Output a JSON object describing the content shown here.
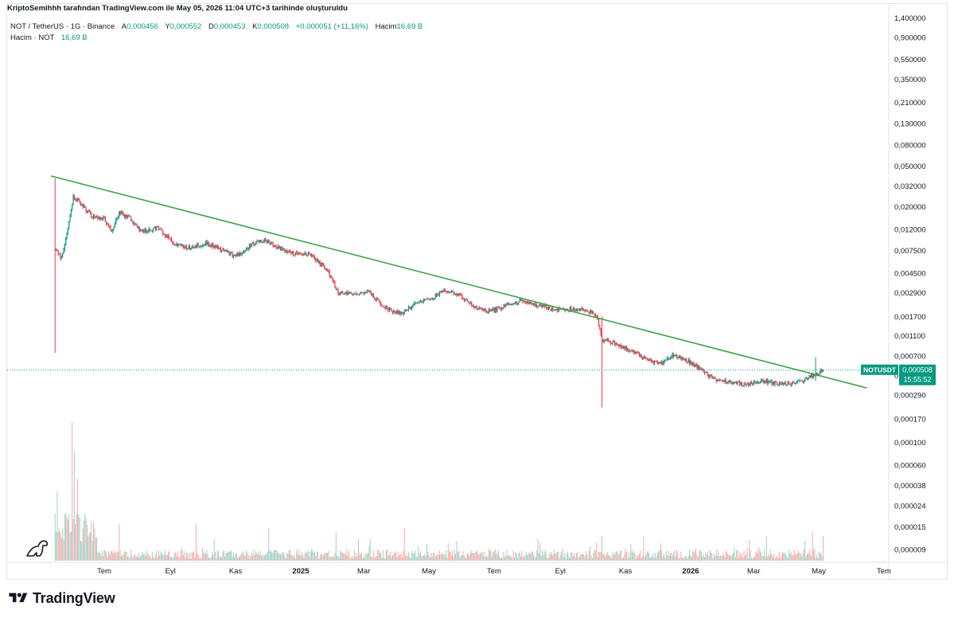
{
  "header": {
    "title": "KriptoSemihhh tarafından TradingView.com ile May 05, 2026 11:04 UTC+3 tarihinde oluşturuldu"
  },
  "legend": {
    "symbol": "NOT / TetherUS · 1G · Binance",
    "open_label": "A",
    "open": "0,000456",
    "high_label": "Y",
    "high": "0,000552",
    "low_label": "D",
    "low": "0,000453",
    "close_label": "K",
    "close": "0,000508",
    "change": "+0,000051 (+11,16%)",
    "volume_label": "Hacim",
    "volume": "16,69 B",
    "volume_series": "Hacim · NOT",
    "volume_series_value": "16,69 B"
  },
  "price_tag": {
    "symbol": "NOTUSDT",
    "price": "0,000508",
    "countdown": "15:55:52"
  },
  "colors": {
    "up": "#089981",
    "down": "#f23645",
    "trendline": "#43a047",
    "up_volume": "#9bd3c9",
    "down_volume": "#f7a9a7",
    "grid_text": "#131722"
  },
  "brand": {
    "name": "TradingView",
    "icon": "tradingview-logo-icon",
    "watermark_icon": "dino-icon"
  },
  "chart_data": {
    "type": "candlestick",
    "symbol": "NOTUSDT",
    "interval": "1D",
    "y_scale": "log",
    "y_ticks": [
      "1,400000",
      "0,900000",
      "0,550000",
      "0,350000",
      "0,210000",
      "0,130000",
      "0,080000",
      "0,050000",
      "0,032000",
      "0,020000",
      "0,012000",
      "0,007500",
      "0,004500",
      "0,002900",
      "0,001700",
      "0,001100",
      "0,000700",
      "0,000450",
      "0,000290",
      "0,000170",
      "0,000100",
      "0,000060",
      "0,000038",
      "0,000024",
      "0,000015",
      "0,000009"
    ],
    "y_tick_values": [
      1.4,
      0.9,
      0.55,
      0.35,
      0.21,
      0.13,
      0.08,
      0.05,
      0.032,
      0.02,
      0.012,
      0.0075,
      0.0045,
      0.0029,
      0.0017,
      0.0011,
      0.0007,
      0.00045,
      0.00029,
      0.00017,
      0.0001,
      6e-05,
      3.8e-05,
      2.4e-05,
      1.5e-05,
      9e-06
    ],
    "x_ticks": [
      "Tem",
      "Eyl",
      "Kas",
      "2025",
      "Mar",
      "May",
      "Tem",
      "Eyl",
      "Kas",
      "2026",
      "Mar",
      "May",
      "Tem"
    ],
    "x_tick_bold": [
      false,
      false,
      false,
      true,
      false,
      false,
      false,
      false,
      false,
      true,
      false,
      false,
      false
    ],
    "x_tick_dates": [
      "2024-07-01",
      "2024-09-01",
      "2024-11-01",
      "2025-01-01",
      "2025-03-01",
      "2025-05-01",
      "2025-07-01",
      "2025-09-01",
      "2025-11-01",
      "2026-01-01",
      "2026-03-01",
      "2026-05-01",
      "2026-07-01"
    ],
    "last_price": 0.000508,
    "price_path": [
      [
        "2024-05-16",
        0.0078
      ],
      [
        "2024-05-22",
        0.0062
      ],
      [
        "2024-05-28",
        0.012
      ],
      [
        "2024-06-02",
        0.025
      ],
      [
        "2024-06-10",
        0.021
      ],
      [
        "2024-06-20",
        0.016
      ],
      [
        "2024-07-01",
        0.015
      ],
      [
        "2024-07-08",
        0.0115
      ],
      [
        "2024-07-15",
        0.0175
      ],
      [
        "2024-07-25",
        0.0155
      ],
      [
        "2024-08-05",
        0.0115
      ],
      [
        "2024-08-20",
        0.0125
      ],
      [
        "2024-09-05",
        0.0085
      ],
      [
        "2024-09-20",
        0.008
      ],
      [
        "2024-10-05",
        0.0088
      ],
      [
        "2024-10-20",
        0.0075
      ],
      [
        "2024-11-01",
        0.0065
      ],
      [
        "2024-11-15",
        0.0085
      ],
      [
        "2024-11-28",
        0.0095
      ],
      [
        "2024-12-10",
        0.008
      ],
      [
        "2024-12-25",
        0.007
      ],
      [
        "2025-01-10",
        0.0068
      ],
      [
        "2025-01-25",
        0.005
      ],
      [
        "2025-02-05",
        0.0029
      ],
      [
        "2025-02-20",
        0.0028
      ],
      [
        "2025-03-05",
        0.003
      ],
      [
        "2025-03-20",
        0.0021
      ],
      [
        "2025-04-05",
        0.0018
      ],
      [
        "2025-04-20",
        0.0023
      ],
      [
        "2025-05-05",
        0.0026
      ],
      [
        "2025-05-15",
        0.0031
      ],
      [
        "2025-05-28",
        0.0028
      ],
      [
        "2025-06-10",
        0.0022
      ],
      [
        "2025-06-25",
        0.0019
      ],
      [
        "2025-07-10",
        0.0021
      ],
      [
        "2025-07-25",
        0.0024
      ],
      [
        "2025-08-10",
        0.0022
      ],
      [
        "2025-08-25",
        0.002
      ],
      [
        "2025-09-10",
        0.002
      ],
      [
        "2025-09-25",
        0.002
      ],
      [
        "2025-10-05",
        0.0017
      ],
      [
        "2025-10-10",
        0.001
      ],
      [
        "2025-10-25",
        0.0009
      ],
      [
        "2025-11-10",
        0.00075
      ],
      [
        "2025-11-25",
        0.00062
      ],
      [
        "2025-12-05",
        0.0006
      ],
      [
        "2025-12-15",
        0.0007
      ],
      [
        "2025-12-30",
        0.00062
      ],
      [
        "2026-01-15",
        0.00048
      ],
      [
        "2026-01-25",
        0.0004
      ],
      [
        "2026-02-10",
        0.00038
      ],
      [
        "2026-02-25",
        0.00037
      ],
      [
        "2026-03-10",
        0.0004
      ],
      [
        "2026-03-25",
        0.00037
      ],
      [
        "2026-04-10",
        0.00038
      ],
      [
        "2026-04-20",
        0.00042
      ],
      [
        "2026-05-05",
        0.000508
      ]
    ],
    "notable_wicks": [
      {
        "date": "2024-05-16",
        "high": 0.038,
        "low": 0.00075
      },
      {
        "date": "2025-10-10",
        "high": 0.0017,
        "low": 0.00022
      },
      {
        "date": "2026-04-28",
        "high": 0.00068,
        "low": 0.0004
      }
    ],
    "trendline": {
      "start": {
        "date": "2024-05-12",
        "price": 0.04
      },
      "end": {
        "date": "2026-06-15",
        "price": 0.00034
      }
    },
    "volume": {
      "max": 34,
      "spikes": [
        {
          "date": "2024-05-18",
          "value": 17
        },
        {
          "date": "2024-06-01",
          "value": 34
        },
        {
          "date": "2024-06-03",
          "value": 27
        },
        {
          "date": "2024-06-06",
          "value": 20
        },
        {
          "date": "2024-07-15",
          "value": 9
        },
        {
          "date": "2024-09-25",
          "value": 9
        },
        {
          "date": "2024-12-02",
          "value": 8
        },
        {
          "date": "2025-02-03",
          "value": 7
        },
        {
          "date": "2025-04-08",
          "value": 8
        },
        {
          "date": "2025-10-10",
          "value": 6
        },
        {
          "date": "2026-04-25",
          "value": 7
        },
        {
          "date": "2026-05-05",
          "value": 6
        }
      ]
    }
  }
}
